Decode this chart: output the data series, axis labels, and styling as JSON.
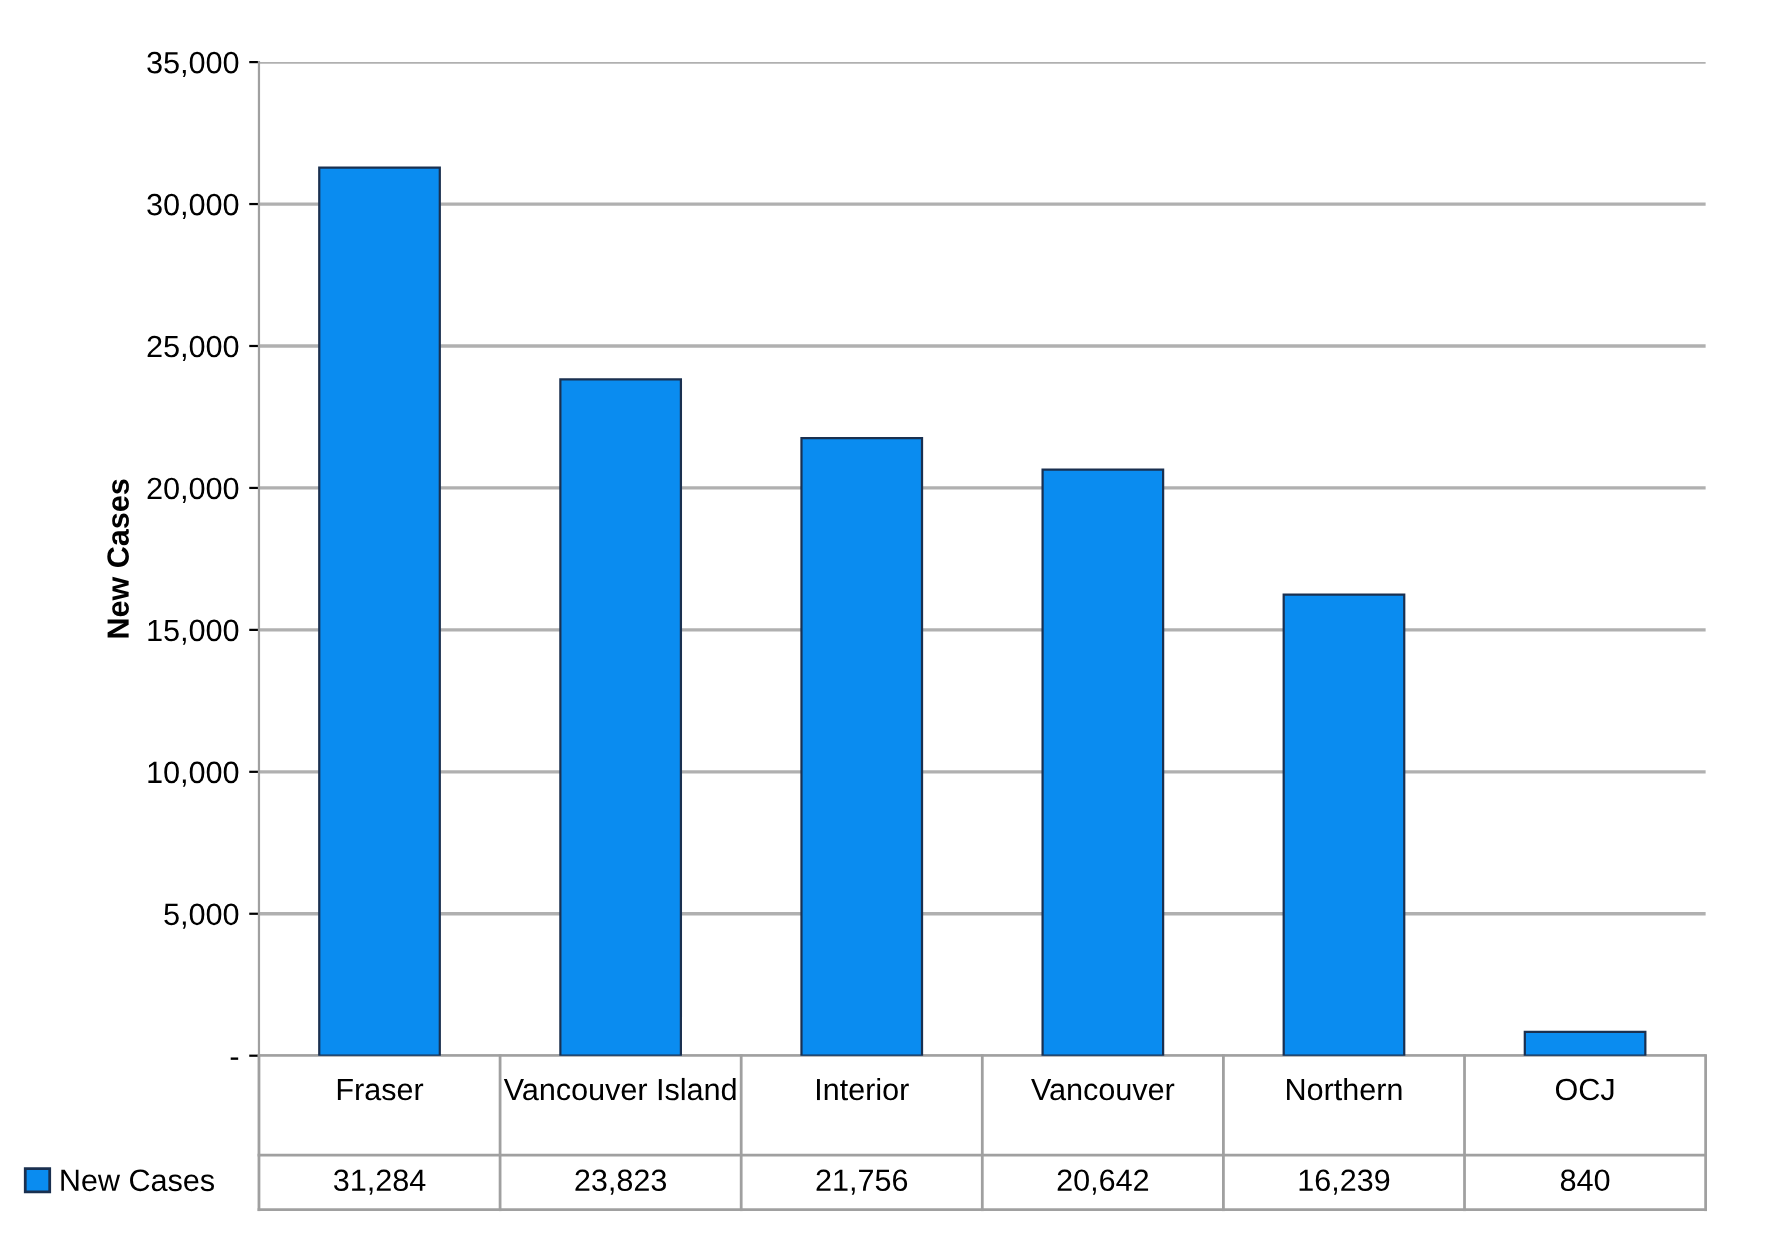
{
  "chart_data": {
    "type": "bar",
    "ylabel": "New Cases",
    "categories": [
      "Fraser",
      "Vancouver Island",
      "Interior",
      "Vancouver",
      "Northern",
      "OCJ"
    ],
    "series": [
      {
        "name": "New Cases",
        "color": "#0a8cf0",
        "values": [
          31284,
          23823,
          21756,
          20642,
          16239,
          840
        ],
        "value_labels": [
          "31,284",
          "23,823",
          "21,756",
          "20,642",
          "16,239",
          "840"
        ]
      }
    ],
    "ylim": [
      0,
      35000
    ],
    "yticks": [
      {
        "value": 0,
        "label": "-"
      },
      {
        "value": 5000,
        "label": "5,000"
      },
      {
        "value": 10000,
        "label": "10,000"
      },
      {
        "value": 15000,
        "label": "15,000"
      },
      {
        "value": 20000,
        "label": "20,000"
      },
      {
        "value": 25000,
        "label": "25,000"
      },
      {
        "value": 30000,
        "label": "30,000"
      },
      {
        "value": 35000,
        "label": "35,000"
      }
    ],
    "grid": "y",
    "legend": "bottom left"
  }
}
